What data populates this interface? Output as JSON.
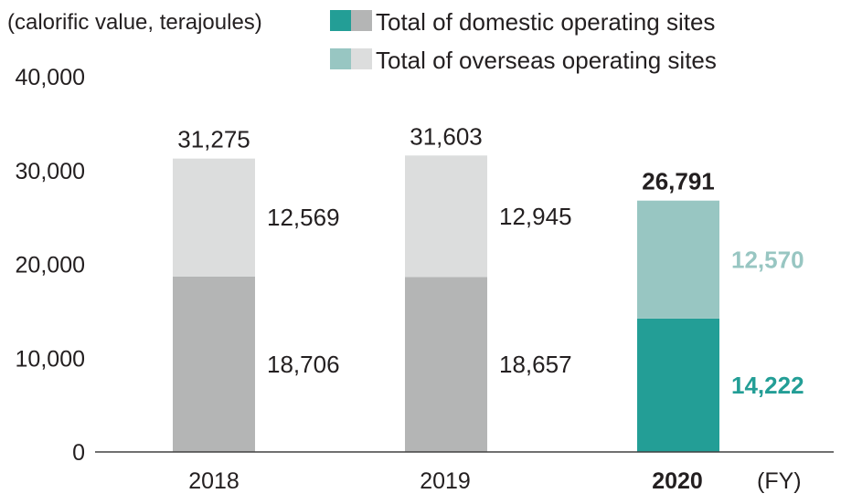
{
  "chart_data": {
    "type": "bar",
    "stacked": true,
    "unit_label": "(calorific value, terajoules)",
    "x_unit": "(FY)",
    "categories": [
      "2018",
      "2019",
      "2020"
    ],
    "highlight_category": "2020",
    "ylim": [
      0,
      40000
    ],
    "yticks": [
      0,
      10000,
      20000,
      30000,
      40000
    ],
    "ytick_labels": [
      "0",
      "10,000",
      "20,000",
      "30,000",
      "40,000"
    ],
    "series": [
      {
        "name": "Total of domestic operating sites",
        "values": [
          18706,
          18657,
          14222
        ],
        "labels": [
          "18,706",
          "18,657",
          "14,222"
        ]
      },
      {
        "name": "Total of overseas operating sites",
        "values": [
          12569,
          12945,
          12570
        ],
        "labels": [
          "12,569",
          "12,945",
          "12,570"
        ]
      }
    ],
    "totals": [
      31275,
      31603,
      26791
    ],
    "total_labels": [
      "31,275",
      "31,603",
      "26,791"
    ],
    "legend_position": "top",
    "grid": false
  },
  "colors": {
    "domestic_highlight": "#239e96",
    "overseas_highlight": "#98c6c2",
    "domestic_muted": "#b4b5b5",
    "overseas_muted": "#dcdddd",
    "domestic_label_highlight": "#239e96",
    "overseas_label_highlight": "#98c6c2",
    "axis": "#404040",
    "text": "#231f20"
  }
}
